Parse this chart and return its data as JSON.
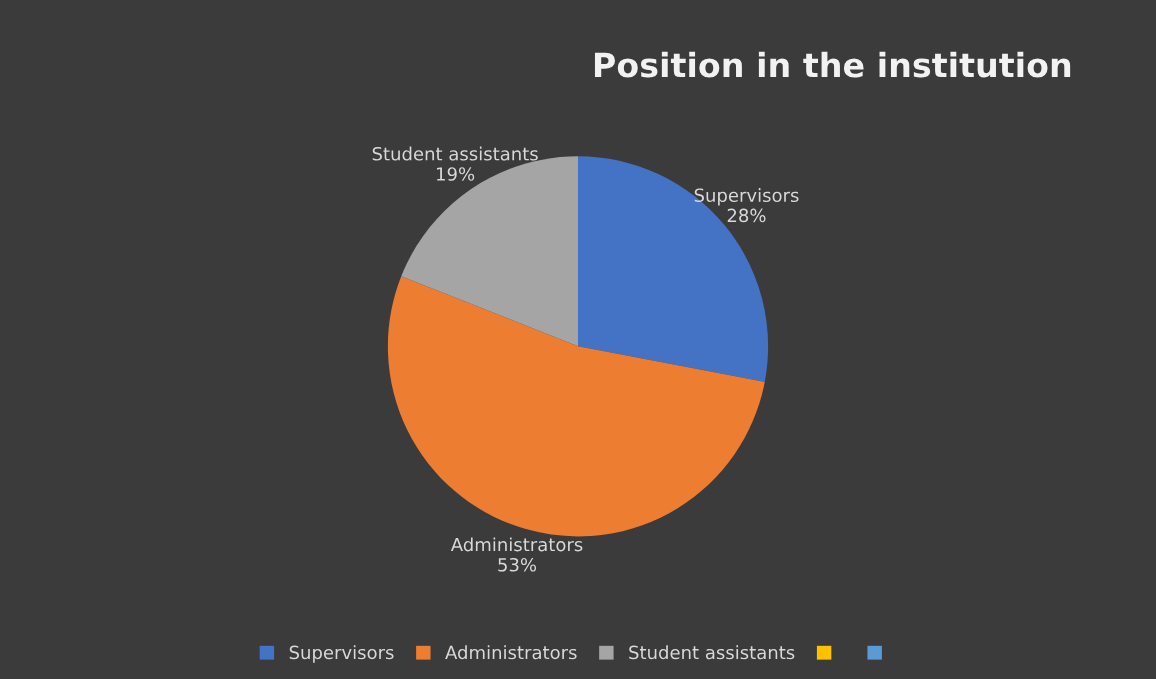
{
  "chart_data": {
    "type": "pie",
    "title": "Position in the institution",
    "categories": [
      "Supervisors",
      "Administrators",
      "Student assistants",
      null,
      null
    ],
    "values": [
      28,
      53,
      19,
      0,
      0
    ],
    "value_labels": [
      "28%",
      "53%",
      "19%",
      null,
      null
    ],
    "colors": [
      "#4472c4",
      "#ed7d31",
      "#a5a5a5",
      "#ffc000",
      "#5b9bd5"
    ],
    "legend": "bottom"
  }
}
